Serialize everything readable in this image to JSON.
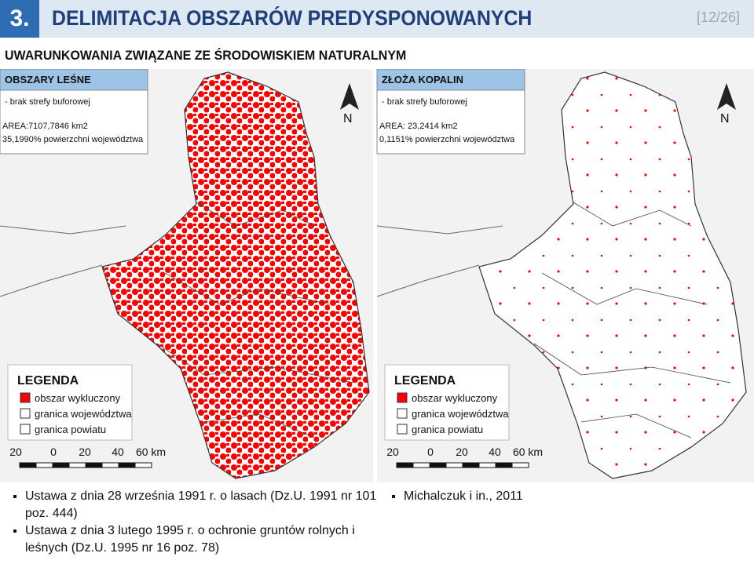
{
  "header": {
    "number": "3.",
    "title": "DELIMITACJA OBSZARÓW PREDYSPONOWANYCH",
    "page": "[12/26]"
  },
  "subtitle": "UWARUNKOWANIA ZWIĄZANE ZE ŚRODOWISKIEM NATURALNYM",
  "maps": [
    {
      "title": "OBSZARY LEŚNE",
      "note": "- brak strefy buforowej",
      "area": "AREA:7107,7846 km2",
      "share": "35,1990% powierzchni województwa",
      "north": "N",
      "legend": {
        "title": "LEGENDA",
        "items": [
          "obszar wykluczony",
          "granica województwa",
          "granica powiatu"
        ]
      },
      "scale": [
        "20",
        "0",
        "20",
        "40",
        "60 km"
      ]
    },
    {
      "title": "ZŁOŻA KOPALIN",
      "note": "- brak strefy buforowej",
      "area": "AREA: 23,2414 km2",
      "share": "0,1151% powierzchni województwa",
      "north": "N",
      "legend": {
        "title": "LEGENDA",
        "items": [
          "obszar wykluczony",
          "granica województwa",
          "granica powiatu"
        ]
      },
      "scale": [
        "20",
        "0",
        "20",
        "40",
        "60 km"
      ]
    }
  ],
  "footer": {
    "left": [
      "Ustawa z dnia 28 września 1991 r. o lasach (Dz.U. 1991 nr 101 poz. 444)",
      "Ustawa z dnia 3 lutego 1995 r. o ochronie gruntów rolnych i leśnych (Dz.U. 1995 nr 16 poz. 78)"
    ],
    "right": [
      "Michalczuk i in., 2011"
    ]
  }
}
